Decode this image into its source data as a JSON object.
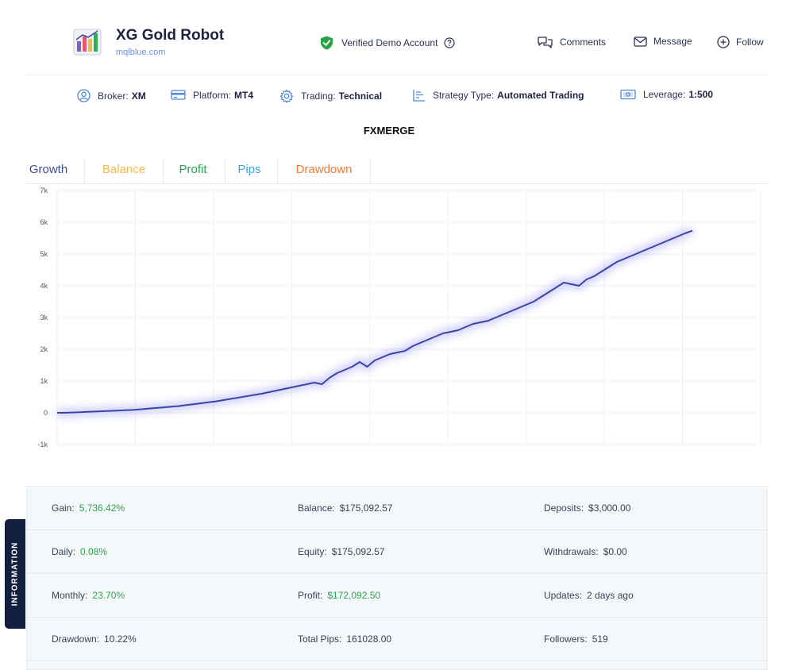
{
  "header": {
    "title": "XG Gold Robot",
    "subtitle": "mqlblue.com",
    "verified_label": "Verified Demo Account",
    "actions": {
      "comments": "Comments",
      "message": "Message",
      "follow": "Follow"
    }
  },
  "infobar": {
    "broker_label": "Broker:",
    "broker_value": "XM",
    "platform_label": "Platform:",
    "platform_value": "MT4",
    "trading_label": "Trading:",
    "trading_value": "Technical",
    "strategy_label": "Strategy Type:",
    "strategy_value": "Automated Trading",
    "leverage_label": "Leverage:",
    "leverage_value": "1:500"
  },
  "account_name": "FXMERGE",
  "tabs": [
    {
      "label": "Growth",
      "color": "#3f4a8c"
    },
    {
      "label": "Balance",
      "color": "#f1b94a"
    },
    {
      "label": "Profit",
      "color": "#2aa348"
    },
    {
      "label": "Pips",
      "color": "#3aa6dc"
    },
    {
      "label": "Drawdown",
      "color": "#ef7a3a"
    }
  ],
  "chart_data": {
    "type": "line",
    "title": "",
    "xlabel": "",
    "ylabel": "",
    "ylim": [
      -1000,
      7000
    ],
    "yticks": [
      "7k",
      "6k",
      "5k",
      "4k",
      "3k",
      "2k",
      "1k",
      "0",
      "-1k"
    ],
    "grid": true,
    "line_color": "#3d44a8",
    "series": [
      {
        "values": [
          0,
          0,
          10,
          20,
          30,
          40,
          50,
          60,
          70,
          80,
          90,
          110,
          130,
          150,
          170,
          190,
          210,
          240,
          270,
          300,
          330,
          360,
          400,
          440,
          480,
          520,
          560,
          600,
          650,
          700,
          750,
          800,
          850,
          900,
          950,
          900,
          1100,
          1250,
          1350,
          1450,
          1600,
          1450,
          1650,
          1750,
          1850,
          1900,
          1950,
          2100,
          2200,
          2300,
          2400,
          2500,
          2550,
          2600,
          2700,
          2800,
          2850,
          2900,
          3000,
          3100,
          3200,
          3300,
          3400,
          3500,
          3650,
          3800,
          3950,
          4100,
          4050,
          4000,
          4200,
          4300,
          4450,
          4600,
          4750,
          4850,
          4950,
          5050,
          5150,
          5250,
          5350,
          5450,
          5550,
          5650,
          5736
        ]
      }
    ]
  },
  "stats": {
    "rows": [
      [
        {
          "label": "Gain:",
          "value": "5,736.42%",
          "green": true
        },
        {
          "label": "Balance:",
          "value": "$175,092.57",
          "green": false
        },
        {
          "label": "Deposits:",
          "value": "$3,000.00",
          "green": false
        }
      ],
      [
        {
          "label": "Daily:",
          "value": "0.08%",
          "green": true
        },
        {
          "label": "Equity:",
          "value": "$175,092.57",
          "green": false
        },
        {
          "label": "Withdrawals:",
          "value": "$0.00",
          "green": false
        }
      ],
      [
        {
          "label": "Monthly:",
          "value": "23.70%",
          "green": true
        },
        {
          "label": "Profit:",
          "value": "$172,092.50",
          "green": true
        },
        {
          "label": "Updates:",
          "value": "2 days ago",
          "green": false
        }
      ],
      [
        {
          "label": "Drawdown:",
          "value": "10.22%",
          "green": false
        },
        {
          "label": "Total Pips:",
          "value": "161028.00",
          "green": false
        },
        {
          "label": "Followers:",
          "value": "519",
          "green": false
        }
      ]
    ]
  },
  "side_tab_label": "INFORMATION"
}
